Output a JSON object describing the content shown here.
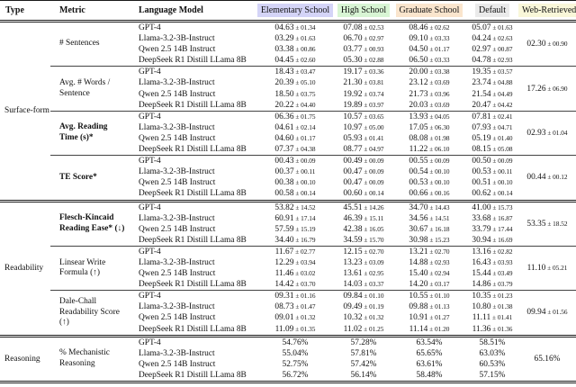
{
  "table": {
    "headers": [
      {
        "label": "Type"
      },
      {
        "label": "Metric"
      },
      {
        "label": "Language Model"
      },
      {
        "label": "Elementary School",
        "bg": "#d4d4f7"
      },
      {
        "label": "High School",
        "bg": "#d8f5d4"
      },
      {
        "label": "Graduate School",
        "bg": "#fae5cd"
      },
      {
        "label": "Default",
        "bg": "#eaeaea"
      },
      {
        "label": "Web-Retrieved",
        "bg": "#f9f7d9"
      }
    ],
    "groups": [
      {
        "type": "Surface-form",
        "metrics": [
          {
            "name": "# Sentences",
            "bold": false,
            "web": [
              "02.30",
              "00.90"
            ],
            "rows": [
              {
                "model": "GPT-4",
                "values": [
                  [
                    "04.63",
                    "01.34"
                  ],
                  [
                    "07.08",
                    "02.53"
                  ],
                  [
                    "08.46",
                    "02.62"
                  ],
                  [
                    "05.07",
                    "01.63"
                  ]
                ]
              },
              {
                "model": "Llama-3.2-3B-Instruct",
                "values": [
                  [
                    "03.29",
                    "01.63"
                  ],
                  [
                    "06.70",
                    "02.97"
                  ],
                  [
                    "09.10",
                    "03.33"
                  ],
                  [
                    "04.24",
                    "02.63"
                  ]
                ]
              },
              {
                "model": "Qwen 2.5 14B Instruct",
                "values": [
                  [
                    "03.38",
                    "00.86"
                  ],
                  [
                    "03.77",
                    "00.93"
                  ],
                  [
                    "04.50",
                    "01.17"
                  ],
                  [
                    "02.97",
                    "00.87"
                  ]
                ]
              },
              {
                "model": "DeepSeek R1 Distill LLama 8B",
                "values": [
                  [
                    "04.45",
                    "02.60"
                  ],
                  [
                    "05.30",
                    "02.88"
                  ],
                  [
                    "06.50",
                    "03.33"
                  ],
                  [
                    "04.78",
                    "02.93"
                  ]
                ]
              }
            ]
          },
          {
            "name": "Avg. # Words / Sentence",
            "bold": false,
            "web": [
              "17.26",
              "06.90"
            ],
            "rows": [
              {
                "model": "GPT-4",
                "values": [
                  [
                    "18.43",
                    "03.47"
                  ],
                  [
                    "19.17",
                    "03.36"
                  ],
                  [
                    "20.00",
                    "03.38"
                  ],
                  [
                    "19.35",
                    "03.57"
                  ]
                ]
              },
              {
                "model": "Llama-3.2-3B-Instruct",
                "values": [
                  [
                    "20.39",
                    "05.10"
                  ],
                  [
                    "21.30",
                    "03.81"
                  ],
                  [
                    "23.12",
                    "03.69"
                  ],
                  [
                    "23.74",
                    "04.88"
                  ]
                ]
              },
              {
                "model": "Qwen 2.5 14B Instruct",
                "values": [
                  [
                    "18.50",
                    "03.75"
                  ],
                  [
                    "19.92",
                    "03.74"
                  ],
                  [
                    "21.73",
                    "03.96"
                  ],
                  [
                    "21.54",
                    "04.49"
                  ]
                ]
              },
              {
                "model": "DeepSeek R1 Distill LLama 8B",
                "values": [
                  [
                    "20.22",
                    "04.40"
                  ],
                  [
                    "19.89",
                    "03.97"
                  ],
                  [
                    "20.03",
                    "03.69"
                  ],
                  [
                    "20.47",
                    "04.42"
                  ]
                ]
              }
            ]
          },
          {
            "name": "Avg. Reading Time (s)*",
            "bold": true,
            "web": [
              "02.93",
              "01.04"
            ],
            "rows": [
              {
                "model": "GPT-4",
                "values": [
                  [
                    "06.36",
                    "01.75"
                  ],
                  [
                    "10.57",
                    "03.65"
                  ],
                  [
                    "13.93",
                    "04.05"
                  ],
                  [
                    "07.81",
                    "02.41"
                  ]
                ]
              },
              {
                "model": "Llama-3.2-3B-Instruct",
                "values": [
                  [
                    "04.61",
                    "02.14"
                  ],
                  [
                    "10.97",
                    "05.00"
                  ],
                  [
                    "17.05",
                    "06.30"
                  ],
                  [
                    "07.93",
                    "04.71"
                  ]
                ]
              },
              {
                "model": "Qwen 2.5 14B Instruct",
                "values": [
                  [
                    "04.60",
                    "01.17"
                  ],
                  [
                    "05.93",
                    "01.41"
                  ],
                  [
                    "08.08",
                    "01.98"
                  ],
                  [
                    "05.19",
                    "01.40"
                  ]
                ]
              },
              {
                "model": "DeepSeek R1 Distill LLama 8B",
                "values": [
                  [
                    "07.37",
                    "04.38"
                  ],
                  [
                    "08.77",
                    "04.97"
                  ],
                  [
                    "11.22",
                    "06.10"
                  ],
                  [
                    "08.15",
                    "05.08"
                  ]
                ]
              }
            ]
          },
          {
            "name": "TE Score*",
            "bold": true,
            "web": [
              "00.44",
              "00.12"
            ],
            "rows": [
              {
                "model": "GPT-4",
                "values": [
                  [
                    "00.43",
                    "00.09"
                  ],
                  [
                    "00.49",
                    "00.09"
                  ],
                  [
                    "00.55",
                    "00.09"
                  ],
                  [
                    "00.50",
                    "00.09"
                  ]
                ]
              },
              {
                "model": "Llama-3.2-3B-Instruct",
                "values": [
                  [
                    "00.37",
                    "00.11"
                  ],
                  [
                    "00.47",
                    "00.09"
                  ],
                  [
                    "00.54",
                    "00.10"
                  ],
                  [
                    "00.53",
                    "00.11"
                  ]
                ]
              },
              {
                "model": "Qwen 2.5 14B Instruct",
                "values": [
                  [
                    "00.38",
                    "00.10"
                  ],
                  [
                    "00.47",
                    "00.09"
                  ],
                  [
                    "00.53",
                    "00.10"
                  ],
                  [
                    "00.51",
                    "00.10"
                  ]
                ]
              },
              {
                "model": "DeepSeek R1 Distill LLama 8B",
                "values": [
                  [
                    "00.58",
                    "00.14"
                  ],
                  [
                    "00.60",
                    "00.14"
                  ],
                  [
                    "00.66",
                    "00.16"
                  ],
                  [
                    "00.62",
                    "00.14"
                  ]
                ]
              }
            ]
          }
        ]
      },
      {
        "type": "Readability",
        "metrics": [
          {
            "name": "Flesch-Kincaid Reading Ease* (↓)",
            "bold": true,
            "web": [
              "53.35",
              "18.52"
            ],
            "rows": [
              {
                "model": "GPT-4",
                "values": [
                  [
                    "53.82",
                    "14.52"
                  ],
                  [
                    "45.51",
                    "14.26"
                  ],
                  [
                    "34.70",
                    "14.43"
                  ],
                  [
                    "41.00",
                    "15.73"
                  ]
                ]
              },
              {
                "model": "Llama-3.2-3B-Instruct",
                "values": [
                  [
                    "60.91",
                    "17.14"
                  ],
                  [
                    "46.39",
                    "15.11"
                  ],
                  [
                    "34.56",
                    "14.51"
                  ],
                  [
                    "33.68",
                    "16.87"
                  ]
                ]
              },
              {
                "model": "Qwen 2.5 14B Instruct",
                "values": [
                  [
                    "57.59",
                    "15.19"
                  ],
                  [
                    "42.38",
                    "16.05"
                  ],
                  [
                    "30.67",
                    "16.18"
                  ],
                  [
                    "33.79",
                    "17.44"
                  ]
                ]
              },
              {
                "model": "DeepSeek R1 Distill LLama 8B",
                "values": [
                  [
                    "34.40",
                    "16.79"
                  ],
                  [
                    "34.59",
                    "15.70"
                  ],
                  [
                    "30.98",
                    "15.23"
                  ],
                  [
                    "30.94",
                    "16.69"
                  ]
                ]
              }
            ]
          },
          {
            "name": "Linsear Write Formula (↑)",
            "bold": false,
            "web": [
              "11.10",
              "05.21"
            ],
            "rows": [
              {
                "model": "GPT-4",
                "values": [
                  [
                    "11.67",
                    "02.77"
                  ],
                  [
                    "12.15",
                    "02.70"
                  ],
                  [
                    "13.21",
                    "02.70"
                  ],
                  [
                    "13.16",
                    "02.82"
                  ]
                ]
              },
              {
                "model": "Llama-3.2-3B-Instruct",
                "values": [
                  [
                    "12.29",
                    "03.94"
                  ],
                  [
                    "13.23",
                    "03.09"
                  ],
                  [
                    "14.88",
                    "02.93"
                  ],
                  [
                    "16.43",
                    "03.93"
                  ]
                ]
              },
              {
                "model": "Qwen 2.5 14B Instruct",
                "values": [
                  [
                    "11.46",
                    "03.02"
                  ],
                  [
                    "13.61",
                    "02.95"
                  ],
                  [
                    "15.40",
                    "02.94"
                  ],
                  [
                    "15.44",
                    "03.49"
                  ]
                ]
              },
              {
                "model": "DeepSeek R1 Distill LLama 8B",
                "values": [
                  [
                    "14.42",
                    "03.70"
                  ],
                  [
                    "14.03",
                    "03.37"
                  ],
                  [
                    "14.20",
                    "03.17"
                  ],
                  [
                    "14.86",
                    "03.79"
                  ]
                ]
              }
            ]
          },
          {
            "name": "Dale-Chall Readability Score (↑)",
            "bold": false,
            "web": [
              "09.94",
              "01.56"
            ],
            "rows": [
              {
                "model": "GPT-4",
                "values": [
                  [
                    "09.31",
                    "01.16"
                  ],
                  [
                    "09.84",
                    "01.10"
                  ],
                  [
                    "10.55",
                    "01.10"
                  ],
                  [
                    "10.35",
                    "01.23"
                  ]
                ]
              },
              {
                "model": "Llama-3.2-3B-Instruct",
                "values": [
                  [
                    "08.73",
                    "01.47"
                  ],
                  [
                    "09.49",
                    "01.19"
                  ],
                  [
                    "09.88",
                    "01.13"
                  ],
                  [
                    "10.80",
                    "01.38"
                  ]
                ]
              },
              {
                "model": "Qwen 2.5 14B Instruct",
                "values": [
                  [
                    "09.01",
                    "01.32"
                  ],
                  [
                    "10.32",
                    "01.32"
                  ],
                  [
                    "10.91",
                    "01.27"
                  ],
                  [
                    "11.11",
                    "01.41"
                  ]
                ]
              },
              {
                "model": "DeepSeek R1 Distill LLama 8B",
                "values": [
                  [
                    "11.09",
                    "01.35"
                  ],
                  [
                    "11.02",
                    "01.25"
                  ],
                  [
                    "11.14",
                    "01.20"
                  ],
                  [
                    "11.36",
                    "01.36"
                  ]
                ]
              }
            ]
          }
        ]
      },
      {
        "type": "Reasoning",
        "metrics": [
          {
            "name": "% Mechanistic Reasoning",
            "bold": false,
            "web": [
              "65.16%",
              null
            ],
            "rows": [
              {
                "model": "GPT-4",
                "values": [
                  [
                    "54.76%",
                    null
                  ],
                  [
                    "57.28%",
                    null
                  ],
                  [
                    "63.54%",
                    null
                  ],
                  [
                    "58.51%",
                    null
                  ]
                ]
              },
              {
                "model": "Llama-3.2-3B-Instruct",
                "values": [
                  [
                    "55.04%",
                    null
                  ],
                  [
                    "57.81%",
                    null
                  ],
                  [
                    "65.65%",
                    null
                  ],
                  [
                    "63.03%",
                    null
                  ]
                ]
              },
              {
                "model": "Qwen 2.5 14B Instruct",
                "values": [
                  [
                    "52.75%",
                    null
                  ],
                  [
                    "57.42%",
                    null
                  ],
                  [
                    "63.61%",
                    null
                  ],
                  [
                    "60.53%",
                    null
                  ]
                ]
              },
              {
                "model": "DeepSeek R1 Distill LLama 8B",
                "values": [
                  [
                    "56.72%",
                    null
                  ],
                  [
                    "56.14%",
                    null
                  ],
                  [
                    "58.48%",
                    null
                  ],
                  [
                    "57.15%",
                    null
                  ]
                ]
              }
            ]
          }
        ]
      }
    ]
  }
}
